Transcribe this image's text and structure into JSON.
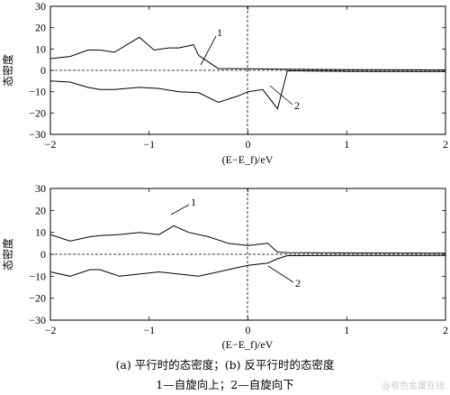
{
  "chart_data": [
    {
      "type": "line",
      "xlabel": "(E−E_f)/eV",
      "ylabel": "态密度",
      "xlim": [
        -2,
        2
      ],
      "ylim": [
        -30,
        30
      ],
      "xticks": [
        -2,
        -1,
        0,
        1,
        2
      ],
      "yticks": [
        -30,
        -20,
        -10,
        0,
        10,
        20,
        30
      ],
      "series": [
        {
          "name": "1",
          "x": [
            -2,
            -1.8,
            -1.62,
            -1.5,
            -1.35,
            -1.1,
            -0.95,
            -0.8,
            -0.7,
            -0.55,
            -0.5,
            -0.3,
            0,
            0.4,
            1,
            2
          ],
          "values": [
            5.5,
            6.5,
            9.5,
            9.5,
            8.5,
            15.5,
            9.5,
            10.5,
            10.5,
            12,
            7,
            0.8,
            0.7,
            0.5,
            0.3,
            0.2
          ]
        },
        {
          "name": "2",
          "x": [
            -2,
            -1.8,
            -1.62,
            -1.5,
            -1.35,
            -1.1,
            -0.9,
            -0.7,
            -0.5,
            -0.3,
            -0.1,
            0,
            0.15,
            0.3,
            0.4,
            1,
            2
          ],
          "values": [
            -5,
            -5.5,
            -8,
            -9,
            -9,
            -8,
            -8.5,
            -10,
            -10.5,
            -15,
            -12,
            -10,
            -9,
            -18,
            -0.2,
            -0.5,
            -0.6
          ]
        }
      ],
      "annotations": [
        "1",
        "2"
      ]
    },
    {
      "type": "line",
      "xlabel": "(E−E_f)/eV",
      "ylabel": "态密度",
      "xlim": [
        -2,
        2
      ],
      "ylim": [
        -30,
        30
      ],
      "xticks": [
        -2,
        -1,
        0,
        1,
        2
      ],
      "yticks": [
        -30,
        -20,
        -10,
        0,
        10,
        20,
        30
      ],
      "series": [
        {
          "name": "1",
          "x": [
            -2,
            -1.8,
            -1.6,
            -1.5,
            -1.3,
            -1.1,
            -0.9,
            -0.75,
            -0.6,
            -0.4,
            -0.2,
            0,
            0.2,
            0.3,
            0.4,
            1,
            2
          ],
          "values": [
            9,
            6,
            8,
            8.5,
            9,
            10,
            9,
            13,
            10,
            8,
            5,
            4,
            5,
            1,
            0.8,
            0.6,
            0.5
          ]
        },
        {
          "name": "2",
          "x": [
            -2,
            -1.8,
            -1.6,
            -1.5,
            -1.3,
            -1.1,
            -0.9,
            -0.7,
            -0.5,
            -0.3,
            -0.1,
            0,
            0.2,
            0.3,
            0.4,
            1,
            2
          ],
          "values": [
            -8,
            -10,
            -7,
            -7,
            -10,
            -9,
            -8,
            -9,
            -10,
            -8,
            -6,
            -5,
            -4,
            -2,
            -0.6,
            -0.5,
            -0.5
          ]
        }
      ],
      "annotations": [
        "1",
        "2"
      ]
    }
  ],
  "caption": {
    "line1": "(a)  平行时的态密度；(b)  反平行时的态密度",
    "line2": "1—自旋向上；2—自旋向下"
  },
  "watermark": "@有色金属在线"
}
